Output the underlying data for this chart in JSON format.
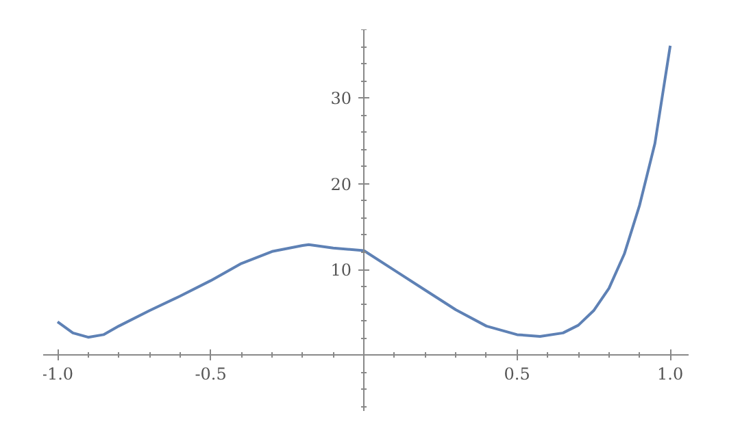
{
  "chart_data": {
    "type": "line",
    "x": [
      -1.0,
      -0.95,
      -0.9,
      -0.85,
      -0.8,
      -0.7,
      -0.6,
      -0.5,
      -0.4,
      -0.3,
      -0.2,
      -0.18,
      -0.1,
      0.0,
      0.1,
      0.2,
      0.3,
      0.4,
      0.5,
      0.575,
      0.65,
      0.7,
      0.75,
      0.8,
      0.85,
      0.9,
      0.95,
      1.0
    ],
    "series": [
      {
        "color": "#5e81b5",
        "values": [
          3.9,
          2.6,
          2.1,
          2.4,
          3.4,
          5.2,
          6.9,
          8.7,
          10.7,
          12.1,
          12.8,
          12.9,
          12.5,
          12.2,
          9.9,
          7.6,
          5.3,
          3.4,
          2.4,
          2.2,
          2.6,
          3.5,
          5.2,
          7.8,
          11.8,
          17.5,
          24.7,
          36.1
        ]
      }
    ],
    "xlim": [
      -1.047,
      1.06
    ],
    "ylim": [
      -6.5,
      38
    ],
    "xticks": [
      {
        "value": -1.0,
        "label": "-1.0"
      },
      {
        "value": -0.5,
        "label": "-0.5"
      },
      {
        "value": 0.5,
        "label": "0.5"
      },
      {
        "value": 1.0,
        "label": "1.0"
      }
    ],
    "yticks": [
      10,
      20,
      30
    ],
    "grid": false,
    "marker": "none",
    "line_style": "solid"
  }
}
